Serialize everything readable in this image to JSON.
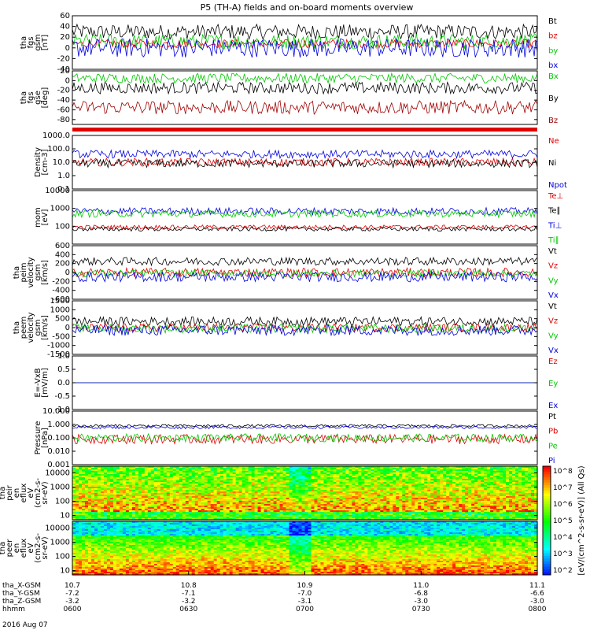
{
  "figure": {
    "title": "P5 (TH-A) fields and on-board moments overview",
    "date_label": "2016 Aug 07",
    "colorbar_label": "[eV/(cm^2-s-sr-eV)] (All Qs)",
    "colorbar_ticks": [
      "10^8",
      "10^7",
      "10^6",
      "10^5",
      "10^4",
      "10^3",
      "10^2"
    ]
  },
  "chart_data": [
    {
      "type": "line",
      "ylabel": [
        "tha",
        "fgs",
        "gsm",
        "[nT]"
      ],
      "ylim": [
        -40,
        60
      ],
      "yticks": [
        "60",
        "40",
        "20",
        "0",
        "-20",
        "-40"
      ],
      "series": [
        {
          "name": "Bt",
          "color": "#000000",
          "baseline": 30,
          "amplitude": 14
        },
        {
          "name": "bz",
          "color": "#e00000",
          "baseline": 8,
          "amplitude": 8
        },
        {
          "name": "by",
          "color": "#00c800",
          "baseline": 12,
          "amplitude": 14
        },
        {
          "name": "bx",
          "color": "#0000e0",
          "baseline": 0,
          "amplitude": 18
        }
      ]
    },
    {
      "type": "line",
      "ylabel": [
        "tha",
        "fgs",
        "gse",
        "[deg]"
      ],
      "ylim": [
        -90,
        20
      ],
      "yticks": [
        "20",
        "0",
        "-20",
        "-40",
        "-60",
        "-80"
      ],
      "series": [
        {
          "name": "Bx",
          "color": "#00c800",
          "baseline": 5,
          "amplitude": 10
        },
        {
          "name": "By",
          "color": "#000000",
          "baseline": -15,
          "amplitude": 12
        },
        {
          "name": "Bz",
          "color": "#a00000",
          "baseline": -55,
          "amplitude": 14
        }
      ]
    },
    {
      "type": "line",
      "ylabel": [
        "Density",
        "[cm-3]"
      ],
      "scale": "log",
      "ylim": [
        0.1,
        1000
      ],
      "yticks": [
        "1000.0",
        "100.0",
        "10.0",
        "1.0",
        "0.1"
      ],
      "series": [
        {
          "name": "Ne",
          "color": "#e00000",
          "baseline": 10,
          "amplitude": 0.3
        },
        {
          "name": "Ni",
          "color": "#000000",
          "baseline": 8,
          "amplitude": 0.3
        },
        {
          "name": "Npot",
          "color": "#0000e0",
          "baseline": 40,
          "amplitude": 0.3
        }
      ]
    },
    {
      "type": "line",
      "ylabel": [
        "mom",
        "[eV]"
      ],
      "scale": "log",
      "ylim": [
        10,
        10000
      ],
      "yticks": [
        "10000",
        "1000",
        "100"
      ],
      "series": [
        {
          "name": "Te⊥",
          "color": "#e00000",
          "baseline": 90,
          "amplitude": 0.12
        },
        {
          "name": "Te∥",
          "color": "#000000",
          "baseline": 70,
          "amplitude": 0.12
        },
        {
          "name": "Ti⊥",
          "color": "#0000e0",
          "baseline": 700,
          "amplitude": 0.2
        },
        {
          "name": "Ti∥",
          "color": "#00c800",
          "baseline": 500,
          "amplitude": 0.2
        }
      ]
    },
    {
      "type": "line",
      "ylabel": [
        "tha",
        "peim",
        "velocity",
        "gsm",
        "[km/s]"
      ],
      "ylim": [
        -600,
        600
      ],
      "yticks": [
        "600",
        "400",
        "200",
        "0",
        "-200",
        "-400",
        "-600"
      ],
      "series": [
        {
          "name": "Vt",
          "color": "#000000",
          "baseline": 250,
          "amplitude": 90
        },
        {
          "name": "Vz",
          "color": "#e00000",
          "baseline": 0,
          "amplitude": 100
        },
        {
          "name": "Vy",
          "color": "#00c800",
          "baseline": -20,
          "amplitude": 80
        },
        {
          "name": "Vx",
          "color": "#0000e0",
          "baseline": -100,
          "amplitude": 110
        }
      ]
    },
    {
      "type": "line",
      "ylabel": [
        "tha",
        "peem",
        "velocity",
        "gsm",
        "[km/s]"
      ],
      "ylim": [
        -1500,
        1500
      ],
      "yticks": [
        "1500",
        "1000",
        "500",
        "0",
        "-500",
        "-1000",
        "-1500"
      ],
      "series": [
        {
          "name": "Vt",
          "color": "#000000",
          "baseline": 350,
          "amplitude": 250
        },
        {
          "name": "Vz",
          "color": "#e00000",
          "baseline": 0,
          "amplitude": 220
        },
        {
          "name": "Vy",
          "color": "#00c800",
          "baseline": -50,
          "amplitude": 250
        },
        {
          "name": "Vx",
          "color": "#0000e0",
          "baseline": -150,
          "amplitude": 300
        }
      ]
    },
    {
      "type": "line",
      "ylabel": [
        "E=-VxB",
        "[mV/m]"
      ],
      "ylim": [
        -1,
        1
      ],
      "yticks": [
        "1.0",
        "0.5",
        "0.0",
        "-0.5",
        "-1.0"
      ],
      "series": [
        {
          "name": "Ez",
          "color": "#e00000",
          "baseline": 0,
          "amplitude": 0
        },
        {
          "name": "Ey",
          "color": "#00c800",
          "baseline": 0,
          "amplitude": 0
        },
        {
          "name": "Ex",
          "color": "#0000e0",
          "baseline": 0,
          "amplitude": 0
        }
      ]
    },
    {
      "type": "line",
      "ylabel": [
        "Pressure",
        "[nPa]"
      ],
      "scale": "log",
      "ylim": [
        0.001,
        10
      ],
      "yticks": [
        "10.000",
        "1.000",
        "0.100",
        "0.010",
        "0.001"
      ],
      "series": [
        {
          "name": "Pt",
          "color": "#000000",
          "baseline": 0.8,
          "amplitude": 0.1
        },
        {
          "name": "Pb",
          "color": "#e00000",
          "baseline": 0.08,
          "amplitude": 0.35
        },
        {
          "name": "Pe",
          "color": "#00c800",
          "baseline": 0.1,
          "amplitude": 0.3
        },
        {
          "name": "Pi",
          "color": "#0000e0",
          "baseline": 0.6,
          "amplitude": 0.1
        }
      ]
    },
    {
      "type": "heatmap",
      "ylabel": [
        "tha",
        "peir",
        "en",
        "eflux",
        "eV",
        "(cm2-s-",
        "sr-eV)"
      ],
      "scale": "log",
      "ylim": [
        5,
        30000
      ],
      "yticks": [
        "10000",
        "1000",
        "100",
        "10"
      ]
    },
    {
      "type": "heatmap",
      "ylabel": [
        "tha",
        "peer",
        "en",
        "eflux",
        "eV",
        "(cm2-s-",
        "sr-eV)"
      ],
      "scale": "log",
      "ylim": [
        5,
        30000
      ],
      "yticks": [
        "10000",
        "1000",
        "100",
        "10"
      ]
    }
  ],
  "xaxis": {
    "rows": [
      {
        "label": "tha_X-GSM",
        "values": [
          "10.7",
          "10.8",
          "10.9",
          "11.0",
          "11.1"
        ]
      },
      {
        "label": "tha_Y-GSM",
        "values": [
          "-7.2",
          "-7.1",
          "-7.0",
          "-6.8",
          "-6.6"
        ]
      },
      {
        "label": "tha_Z-GSM",
        "values": [
          "-3.2",
          "-3.2",
          "-3.1",
          "-3.0",
          "-3.0"
        ]
      },
      {
        "label": "hhmm",
        "values": [
          "0600",
          "0630",
          "0700",
          "0730",
          "0800"
        ]
      }
    ]
  }
}
